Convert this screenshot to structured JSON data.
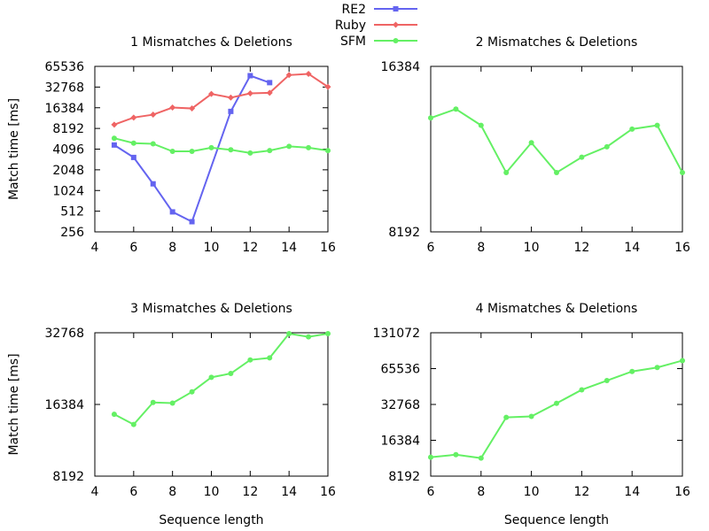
{
  "legend": {
    "entries": [
      {
        "name": "RE2",
        "color": "#6464f0",
        "marker": "square"
      },
      {
        "name": "Ruby",
        "color": "#ef6464",
        "marker": "diamond"
      },
      {
        "name": "SFM",
        "color": "#64f064",
        "marker": "circle"
      }
    ]
  },
  "chart_data": [
    {
      "type": "line",
      "title": "1 Mismatches & Deletions",
      "xlabel": "",
      "ylabel": "Match time [ms]",
      "xlim": [
        4,
        16
      ],
      "ylim": [
        256,
        65536
      ],
      "yscale": "log2",
      "xticks": [
        "4",
        "6",
        "8",
        "10",
        "12",
        "14",
        "16"
      ],
      "yticks": [
        "256",
        "512",
        "1024",
        "2048",
        "4096",
        "8192",
        "16384",
        "32768",
        "65536"
      ],
      "series": [
        {
          "name": "RE2",
          "color": "#6464f0",
          "marker": "square",
          "x": [
            5,
            6,
            7,
            8,
            9,
            11,
            12,
            13
          ],
          "y": [
            4700,
            3100,
            1280,
            500,
            360,
            14500,
            48000,
            38000
          ]
        },
        {
          "name": "Ruby",
          "color": "#ef6464",
          "marker": "diamond",
          "x": [
            5,
            6,
            7,
            8,
            9,
            10,
            11,
            12,
            13,
            14,
            15,
            16
          ],
          "y": [
            9300,
            11800,
            13000,
            16500,
            16000,
            26000,
            23000,
            26500,
            27000,
            49000,
            51000,
            33000
          ]
        },
        {
          "name": "SFM",
          "color": "#64f064",
          "marker": "circle",
          "x": [
            5,
            6,
            7,
            8,
            9,
            10,
            11,
            12,
            13,
            14,
            15,
            16
          ],
          "y": [
            5900,
            5000,
            4900,
            3800,
            3800,
            4300,
            4000,
            3600,
            3900,
            4500,
            4300,
            3900
          ]
        }
      ]
    },
    {
      "type": "line",
      "title": "2 Mismatches & Deletions",
      "xlabel": "",
      "ylabel": "",
      "xlim": [
        6,
        16
      ],
      "ylim": [
        8192,
        16384
      ],
      "yscale": "log2",
      "xticks": [
        "6",
        "8",
        "10",
        "12",
        "14",
        "16"
      ],
      "yticks": [
        "8192",
        "16384"
      ],
      "series": [
        {
          "name": "SFM",
          "color": "#64f064",
          "marker": "circle",
          "x": [
            6,
            7,
            8,
            9,
            10,
            11,
            12,
            13,
            14,
            15,
            16
          ],
          "y": [
            13200,
            13700,
            12800,
            10500,
            11900,
            10500,
            11200,
            11700,
            12600,
            12800,
            10500
          ]
        }
      ]
    },
    {
      "type": "line",
      "title": "3 Mismatches & Deletions",
      "xlabel": "Sequence length",
      "ylabel": "Match time [ms]",
      "xlim": [
        4,
        16
      ],
      "ylim": [
        8192,
        32768
      ],
      "yscale": "log2",
      "xticks": [
        "4",
        "6",
        "8",
        "10",
        "12",
        "14",
        "16"
      ],
      "yticks": [
        "8192",
        "16384",
        "32768"
      ],
      "series": [
        {
          "name": "SFM",
          "color": "#64f064",
          "marker": "circle",
          "x": [
            5,
            6,
            7,
            8,
            9,
            10,
            11,
            12,
            13,
            14,
            15,
            16
          ],
          "y": [
            14900,
            13500,
            16700,
            16600,
            18500,
            21300,
            22100,
            25200,
            25700,
            32500,
            31500,
            32500
          ]
        }
      ]
    },
    {
      "type": "line",
      "title": "4 Mismatches & Deletions",
      "xlabel": "Sequence length",
      "ylabel": "",
      "xlim": [
        6,
        16
      ],
      "ylim": [
        8192,
        131072
      ],
      "yscale": "log2",
      "xticks": [
        "6",
        "8",
        "10",
        "12",
        "14",
        "16"
      ],
      "yticks": [
        "8192",
        "16384",
        "32768",
        "65536",
        "131072"
      ],
      "series": [
        {
          "name": "SFM",
          "color": "#64f064",
          "marker": "circle",
          "x": [
            6,
            7,
            8,
            9,
            10,
            11,
            12,
            13,
            14,
            15,
            16
          ],
          "y": [
            11800,
            12400,
            11600,
            25500,
            26000,
            33500,
            43500,
            52000,
            62000,
            67000,
            76500
          ]
        }
      ]
    }
  ]
}
